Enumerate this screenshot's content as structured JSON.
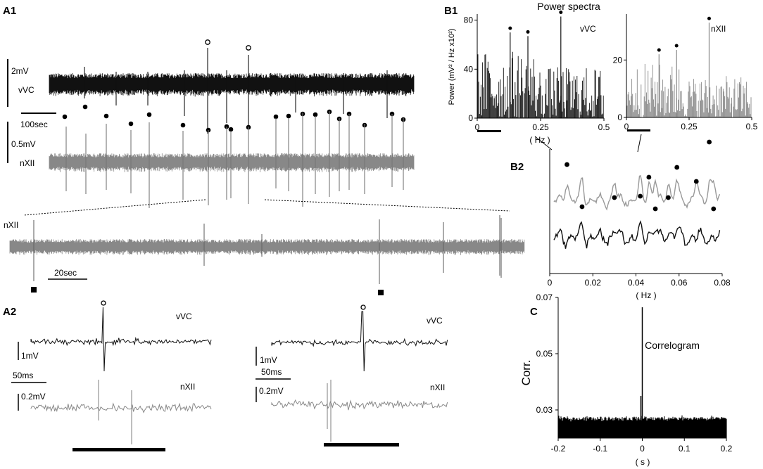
{
  "panel_labels": {
    "a1": "A1",
    "a2": "A2",
    "b1": "B1",
    "b2": "B2",
    "c": "C"
  },
  "a1": {
    "vvc_label": "vVC",
    "nxii_label": "nXII",
    "scale_2mv": "2mV",
    "scale_05mv": "0.5mV",
    "scale_100sec": "100sec",
    "zoom_label": "nXII",
    "zoom_scale": "20sec"
  },
  "a2": {
    "left": {
      "vvc_label": "vVC",
      "nxii_label": "nXII",
      "scale_1mv": "1mV",
      "scale_50ms": "50ms",
      "scale_02mv": "0.2mV"
    },
    "right": {
      "vvc_label": "vVC",
      "nxii_label": "nXII",
      "scale_1mv": "1mV",
      "scale_50ms": "50ms",
      "scale_02mv": "0.2mV"
    }
  },
  "chart_data": [
    {
      "id": "B1-vVC",
      "type": "bar",
      "title": "Power spectra",
      "series_label": "vVC",
      "ylabel": "Power (mV² / Hz x10²)",
      "xlabel": "( Hz )",
      "xlim": [
        0,
        0.5
      ],
      "ylim": [
        0,
        85
      ],
      "xticks": [
        "0",
        "0.25",
        "0.5"
      ],
      "yticks": [
        0,
        40,
        80
      ],
      "color": "#111111",
      "peaks": [
        {
          "x": 0.13,
          "y": 70
        },
        {
          "x": 0.2,
          "y": 67
        },
        {
          "x": 0.33,
          "y": 83
        }
      ]
    },
    {
      "id": "B1-nXII",
      "type": "bar",
      "series_label": "nXII",
      "xlim": [
        0,
        0.5
      ],
      "ylim": [
        0,
        36
      ],
      "xticks": [
        "0",
        "0.25",
        "0.5"
      ],
      "yticks": [
        0,
        20
      ],
      "color": "#888888",
      "peaks": [
        {
          "x": 0.13,
          "y": 22
        },
        {
          "x": 0.2,
          "y": 23.5
        },
        {
          "x": 0.33,
          "y": 33
        }
      ]
    },
    {
      "id": "B2",
      "type": "line",
      "xlabel": "( Hz )",
      "xlim": [
        0,
        0.08
      ],
      "xticks": [
        "0",
        "0.02",
        "0.04",
        "0.06",
        "0.08"
      ],
      "series_colors": [
        "#999999",
        "#111111"
      ],
      "peak_frequencies": [
        0.008,
        0.015,
        0.03,
        0.042,
        0.046,
        0.049,
        0.055,
        0.059,
        0.068,
        0.074,
        0.076
      ]
    },
    {
      "id": "C",
      "type": "bar",
      "title": "Correlogram",
      "ylabel": "Corr.",
      "xlabel": "( s )",
      "xlim": [
        -0.2,
        0.2
      ],
      "ylim": [
        0.02,
        0.07
      ],
      "xticks": [
        "-0.2",
        "-0.1",
        "0",
        "0.1",
        "0.2"
      ],
      "yticks": [
        "0.03",
        "0.05",
        "0.07"
      ],
      "baseline": 0.027,
      "peak": {
        "x": 0,
        "y": 0.0665
      },
      "color": "#000000"
    }
  ]
}
